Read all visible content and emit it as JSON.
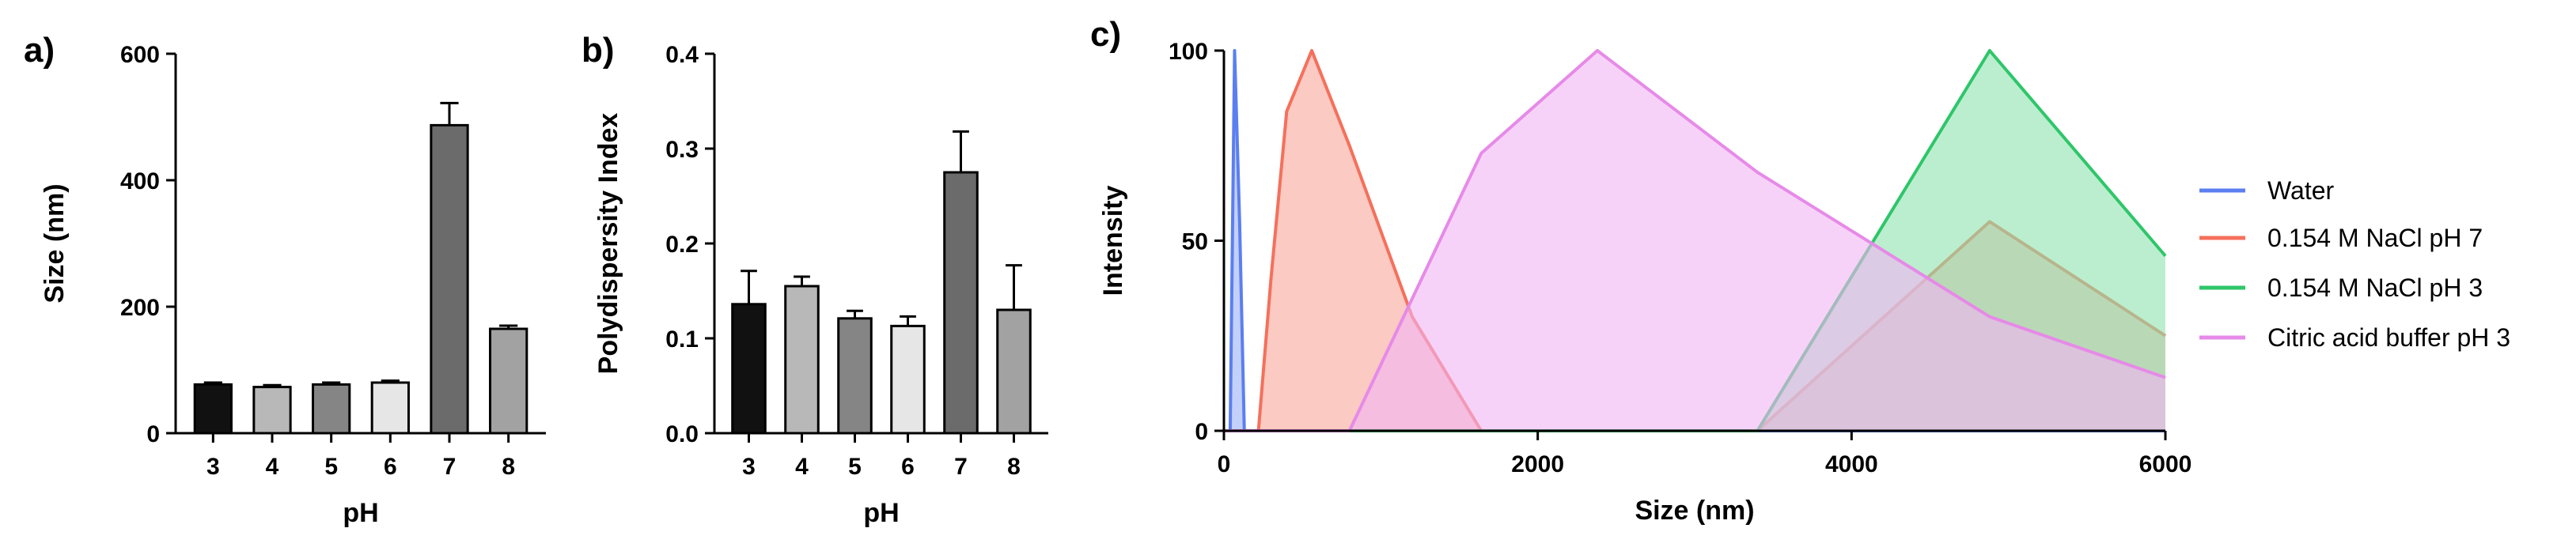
{
  "chart_data": [
    {
      "panel": "a)",
      "type": "bar",
      "xlabel": "pH",
      "ylabel": "Size (nm)",
      "ylim": [
        0,
        600
      ],
      "yticks": [
        "0",
        "200",
        "400",
        "600"
      ],
      "categories": [
        "3",
        "4",
        "5",
        "6",
        "7",
        "8"
      ],
      "values": [
        77,
        73,
        77,
        80,
        487,
        165
      ],
      "errors": [
        3,
        3,
        3,
        3,
        35,
        5
      ],
      "colors": [
        "#111111",
        "#b8b8b8",
        "#858585",
        "#e6e6e6",
        "#6b6b6b",
        "#a2a2a2"
      ]
    },
    {
      "panel": "b)",
      "type": "bar",
      "xlabel": "pH",
      "ylabel": "Polydispersity Index",
      "ylim": [
        0,
        0.4
      ],
      "yticks": [
        "0.0",
        "0.1",
        "0.2",
        "0.3",
        "0.4"
      ],
      "categories": [
        "3",
        "4",
        "5",
        "6",
        "7",
        "8"
      ],
      "values": [
        0.136,
        0.155,
        0.121,
        0.113,
        0.275,
        0.13
      ],
      "errors": [
        0.035,
        0.01,
        0.008,
        0.01,
        0.043,
        0.047
      ],
      "colors": [
        "#111111",
        "#b8b8b8",
        "#858585",
        "#e6e6e6",
        "#6b6b6b",
        "#a2a2a2"
      ]
    },
    {
      "panel": "c)",
      "type": "area",
      "xlabel": "Size (nm)",
      "ylabel": "Intensity",
      "xlim": [
        0,
        6000
      ],
      "ylim": [
        0,
        100
      ],
      "xticks": [
        "0",
        "2000",
        "4000",
        "6000"
      ],
      "yticks": [
        "0",
        "50",
        "100"
      ],
      "legend": "right",
      "series": [
        {
          "name": "Water",
          "color": "#5b7ff0",
          "fill": "#9bb0f6",
          "points": [
            [
              0,
              0
            ],
            [
              40,
              0
            ],
            [
              68,
              100
            ],
            [
              100,
              55
            ],
            [
              130,
              0
            ],
            [
              200,
              0
            ],
            [
              6000,
              0
            ]
          ]
        },
        {
          "name": "0.154 M NaCl pH 7",
          "color": "#f5705c",
          "fill": "#f8a79a",
          "points": [
            [
              0,
              0
            ],
            [
              220,
              0
            ],
            [
              300,
              40
            ],
            [
              400,
              84
            ],
            [
              560,
              100
            ],
            [
              800,
              75
            ],
            [
              1200,
              30
            ],
            [
              1640,
              0
            ],
            [
              3400,
              0
            ],
            [
              4880,
              55
            ],
            [
              6000,
              25
            ]
          ]
        },
        {
          "name": "0.154 M NaCl pH 3",
          "color": "#2ec66a",
          "fill": "#8ee3ae",
          "points": [
            [
              0,
              0
            ],
            [
              3400,
              0
            ],
            [
              4880,
              100
            ],
            [
              6000,
              46
            ]
          ]
        },
        {
          "name": "Citric acid buffer pH 3",
          "color": "#e68ae8",
          "fill": "#f2b4f4",
          "points": [
            [
              0,
              0
            ],
            [
              800,
              0
            ],
            [
              1640,
              73
            ],
            [
              2380,
              100
            ],
            [
              3400,
              68
            ],
            [
              4880,
              30
            ],
            [
              6000,
              14
            ]
          ]
        }
      ]
    }
  ]
}
